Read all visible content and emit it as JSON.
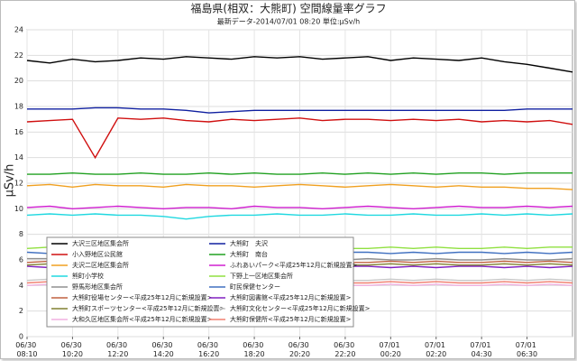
{
  "chart_data": {
    "type": "line",
    "title": "福島県(相双：大熊町) 空間線量率グラフ",
    "subtitle": "最新データ-2014/07/01 08:20 単位:μSv/h",
    "y_label": "μSv/h",
    "categories": [
      "06/30 08:10",
      null,
      "06/30 10:20",
      null,
      "06/30 12:20",
      null,
      "06/30 14:20",
      null,
      "06/30 16:20",
      null,
      "06/30 18:20",
      null,
      "06/30 20:20",
      null,
      "06/30 22:20",
      null,
      "07/01 00:20",
      null,
      "07/01 02:20",
      null,
      "07/01 04:30",
      null,
      "07/01 06:30",
      null,
      null
    ],
    "ylim": [
      0,
      24
    ],
    "yticks": [
      0,
      2,
      4,
      6,
      8,
      10,
      12,
      14,
      16,
      18,
      20,
      22,
      24
    ],
    "grid": true,
    "legend": "bottom-left",
    "series": [
      {
        "name": "大沢三区地区集会所",
        "color": "#000000",
        "values": [
          21.6,
          21.4,
          21.7,
          21.5,
          21.6,
          21.8,
          21.7,
          21.9,
          21.8,
          21.7,
          21.9,
          21.8,
          21.9,
          21.7,
          21.8,
          21.9,
          21.6,
          21.8,
          21.7,
          21.6,
          21.8,
          21.5,
          21.3,
          21.0,
          20.7
        ]
      },
      {
        "name": "小入野地区公民館",
        "color": "#d01010",
        "values": [
          16.8,
          16.9,
          17.0,
          14.0,
          17.1,
          17.0,
          17.1,
          16.9,
          16.8,
          17.0,
          16.9,
          17.0,
          17.1,
          16.9,
          17.0,
          17.0,
          16.9,
          17.0,
          16.9,
          17.0,
          16.8,
          16.9,
          16.8,
          16.9,
          16.6
        ]
      },
      {
        "name": "夫沢二区地区集会所",
        "color": "#f0a020",
        "values": [
          11.8,
          11.9,
          11.7,
          11.9,
          11.8,
          11.8,
          11.7,
          11.9,
          11.8,
          11.8,
          11.7,
          11.8,
          11.9,
          11.8,
          11.7,
          11.8,
          11.9,
          11.8,
          11.7,
          11.8,
          11.7,
          11.7,
          11.6,
          11.6,
          11.5
        ]
      },
      {
        "name": "熊町小学校",
        "color": "#20d8e0",
        "values": [
          9.5,
          9.6,
          9.5,
          9.6,
          9.5,
          9.5,
          9.4,
          9.2,
          9.4,
          9.5,
          9.5,
          9.6,
          9.5,
          9.5,
          9.6,
          9.5,
          9.5,
          9.6,
          9.5,
          9.5,
          9.6,
          9.5,
          9.6,
          9.5,
          9.6
        ]
      },
      {
        "name": "野馬形地区集会所",
        "color": "#909090",
        "values": [
          6.1,
          6.1,
          6.0,
          6.1,
          6.0,
          6.1,
          6.0,
          6.0,
          6.1,
          6.0,
          6.1,
          6.0,
          6.0,
          6.1,
          6.0,
          6.1,
          6.0,
          6.0,
          6.1,
          6.0,
          6.0,
          6.1,
          6.0,
          6.0,
          6.1
        ]
      },
      {
        "name": "大熊町役場センター<平成25年12月に新規設置>",
        "color": "#c06040",
        "values": [
          5.8,
          5.9,
          5.8,
          5.9,
          5.8,
          5.8,
          5.9,
          5.8,
          5.9,
          5.8,
          5.8,
          5.9,
          5.8,
          5.9,
          5.8,
          5.8,
          5.9,
          5.8,
          5.9,
          5.8,
          5.8,
          5.9,
          5.8,
          5.9,
          5.8
        ]
      },
      {
        "name": "大熊町スポーツセンター<平成25年12月に新規設置>",
        "color": "#808030",
        "values": [
          5.6,
          5.7,
          5.6,
          5.7,
          5.6,
          5.6,
          5.7,
          5.6,
          5.7,
          5.6,
          5.6,
          5.7,
          5.6,
          5.7,
          5.6,
          5.6,
          5.7,
          5.6,
          5.7,
          5.6,
          5.6,
          5.7,
          5.6,
          5.7,
          5.6
        ]
      },
      {
        "name": "大和久区地区集会所<平成25年12月に新規設置>",
        "color": "#f0b0e0",
        "values": [
          4.0,
          4.1,
          4.0,
          4.1,
          4.0,
          4.0,
          4.1,
          4.0,
          4.1,
          4.0,
          4.0,
          4.1,
          4.0,
          4.1,
          4.0,
          4.0,
          4.1,
          4.0,
          4.1,
          4.0,
          4.0,
          4.1,
          4.0,
          4.1,
          4.0
        ]
      },
      {
        "name": "大熊町　夫沢",
        "color": "#1020a0",
        "values": [
          17.8,
          17.8,
          17.8,
          17.9,
          17.9,
          17.8,
          17.8,
          17.7,
          17.5,
          17.6,
          17.7,
          17.7,
          17.7,
          17.7,
          17.7,
          17.7,
          17.7,
          17.7,
          17.7,
          17.7,
          17.7,
          17.7,
          17.8,
          17.8,
          17.8
        ]
      },
      {
        "name": "大熊町　南台",
        "color": "#20a020",
        "values": [
          12.7,
          12.7,
          12.8,
          12.7,
          12.7,
          12.8,
          12.7,
          12.7,
          12.8,
          12.7,
          12.8,
          12.7,
          12.7,
          12.8,
          12.7,
          12.8,
          12.7,
          12.8,
          12.7,
          12.8,
          12.8,
          12.7,
          12.8,
          12.8,
          12.8
        ]
      },
      {
        "name": "ふれあいパーク<平成25年12月に新規設置>",
        "color": "#d020d0",
        "values": [
          10.1,
          10.2,
          10.0,
          10.1,
          10.2,
          10.1,
          10.0,
          10.1,
          10.1,
          10.0,
          10.2,
          10.1,
          10.1,
          10.0,
          10.1,
          10.2,
          10.1,
          10.0,
          10.1,
          10.2,
          10.1,
          10.1,
          10.2,
          10.1,
          10.2
        ]
      },
      {
        "name": "下野上一区地区集会所",
        "color": "#90e040",
        "values": [
          6.9,
          7.0,
          6.9,
          7.0,
          6.9,
          6.9,
          7.0,
          6.9,
          7.0,
          6.9,
          6.9,
          7.0,
          6.9,
          7.0,
          6.9,
          6.9,
          7.0,
          6.9,
          7.0,
          6.9,
          6.9,
          7.0,
          6.9,
          7.0,
          7.0
        ]
      },
      {
        "name": "町民保健センター",
        "color": "#4070c0",
        "values": [
          6.6,
          6.5,
          6.6,
          6.5,
          6.6,
          6.6,
          6.5,
          6.6,
          6.5,
          6.6,
          6.6,
          6.5,
          6.6,
          6.5,
          6.6,
          6.6,
          6.5,
          6.6,
          6.5,
          6.6,
          6.6,
          6.5,
          6.6,
          6.5,
          6.6
        ]
      },
      {
        "name": "大熊町図書館<平成25年12月に新規設置>",
        "color": "#8020c0",
        "values": [
          5.5,
          5.4,
          5.5,
          5.4,
          5.5,
          5.5,
          5.4,
          5.5,
          5.4,
          5.5,
          5.5,
          5.4,
          5.5,
          5.4,
          5.5,
          5.5,
          5.4,
          5.5,
          5.4,
          5.5,
          5.5,
          5.4,
          5.5,
          5.4,
          5.5
        ]
      },
      {
        "name": "大熊町文化センター<平成25年12月に新規設置>",
        "color": "#c8c8c8",
        "values": [
          4.4,
          4.5,
          4.4,
          4.5,
          4.4,
          4.4,
          4.5,
          4.4,
          4.5,
          4.4,
          4.4,
          4.5,
          4.4,
          4.5,
          4.4,
          4.4,
          4.5,
          4.4,
          4.5,
          4.4,
          4.4,
          4.5,
          4.4,
          4.5,
          4.4
        ]
      },
      {
        "name": "大熊町保健所<平成25年12月に新規設置>",
        "color": "#f08070",
        "values": [
          4.2,
          4.3,
          4.2,
          4.3,
          4.2,
          4.2,
          4.3,
          4.2,
          4.3,
          4.2,
          4.2,
          4.3,
          4.2,
          4.3,
          4.2,
          4.2,
          4.3,
          4.2,
          4.3,
          4.2,
          4.2,
          4.3,
          4.2,
          4.3,
          4.2
        ]
      }
    ]
  }
}
